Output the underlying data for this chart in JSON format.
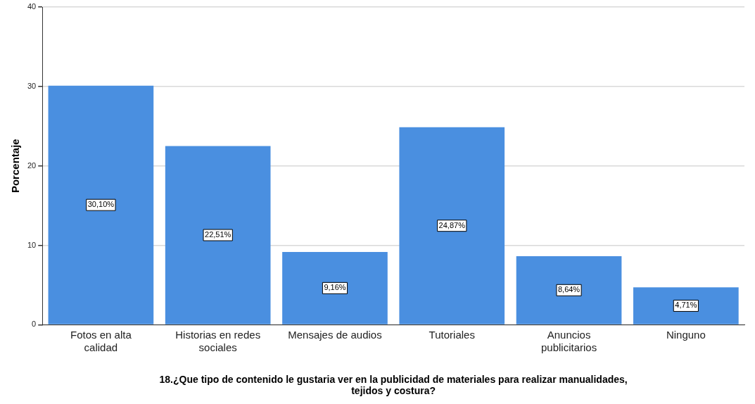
{
  "chart_data": {
    "type": "bar",
    "xlabel": "18.¿Que tipo de contenido le gustaria ver en la publicidad de materiales para realizar manualidades, tejidos y costura?",
    "ylabel": "Porcentaje",
    "categories": [
      "Fotos en alta calidad",
      "Historias en redes sociales",
      "Mensajes de audios",
      "Tutoriales",
      "Anuncios publicitarios",
      "Ninguno"
    ],
    "values": [
      30.1,
      22.51,
      9.16,
      24.87,
      8.64,
      4.71
    ],
    "value_labels": [
      "30,10%",
      "22,51%",
      "9,16%",
      "24,87%",
      "8,64%",
      "4,71%"
    ],
    "color": "#4a8fe0",
    "ylim": [
      0,
      40
    ],
    "yticks": [
      0,
      10,
      20,
      30,
      40
    ],
    "grid": "y"
  }
}
